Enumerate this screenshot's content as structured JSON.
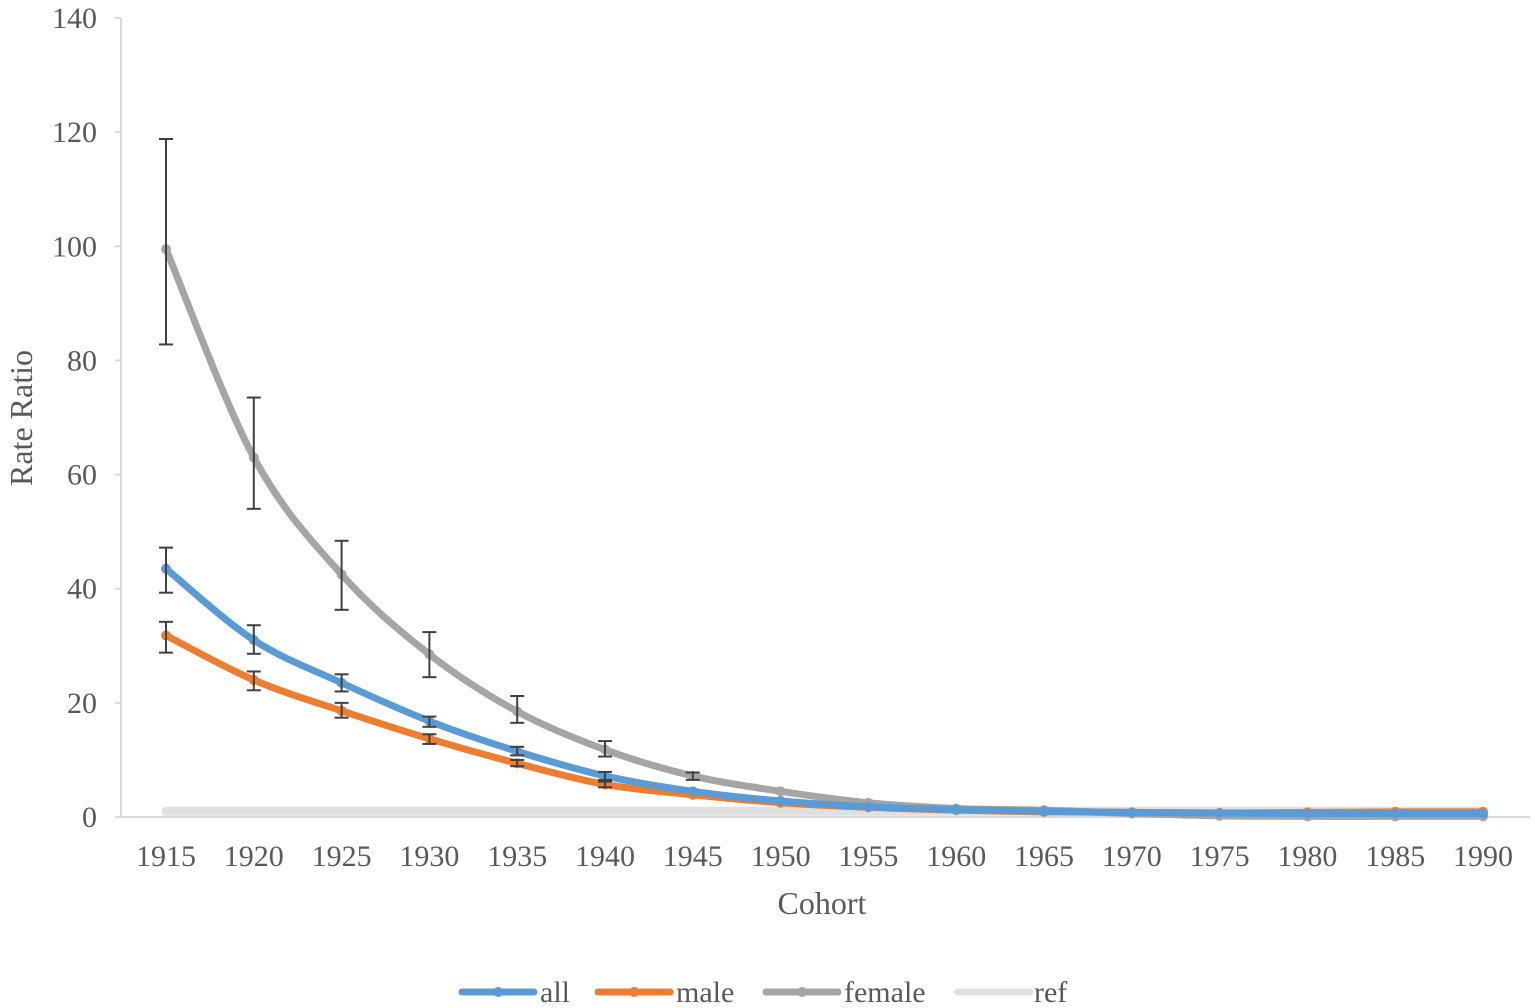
{
  "chart_data": {
    "type": "line",
    "title": "",
    "xlabel": "Cohort",
    "ylabel": "Rate Ratio",
    "categories": [
      "1915",
      "1920",
      "1925",
      "1930",
      "1935",
      "1940",
      "1945",
      "1950",
      "1955",
      "1960",
      "1965",
      "1970",
      "1975",
      "1980",
      "1985",
      "1990"
    ],
    "ylim": [
      0,
      140
    ],
    "yticks": [
      0,
      20,
      40,
      60,
      80,
      100,
      120,
      140
    ],
    "grid": false,
    "legend_position": "bottom",
    "series": [
      {
        "name": "all",
        "color": "#5B9BD5",
        "values": [
          43.5,
          31,
          23.5,
          16.8,
          11.5,
          7.2,
          4.5,
          2.8,
          1.8,
          1.3,
          1.0,
          0.8,
          0.7,
          0.6,
          0.6,
          0.6
        ],
        "error_low": [
          39.3,
          28.6,
          22.0,
          15.8,
          10.8,
          6.5,
          null,
          null,
          null,
          null,
          null,
          null,
          null,
          null,
          null,
          null
        ],
        "error_high": [
          47.2,
          33.6,
          25.0,
          17.6,
          12.3,
          7.9,
          null,
          null,
          null,
          null,
          null,
          null,
          null,
          null,
          null,
          null
        ]
      },
      {
        "name": "male",
        "color": "#ED7D31",
        "values": [
          31.8,
          24,
          18.6,
          13.7,
          9.4,
          5.7,
          3.9,
          2.5,
          1.7,
          1.2,
          0.9,
          0.8,
          0.7,
          0.8,
          0.9,
          0.9
        ],
        "error_low": [
          28.8,
          22.2,
          17.4,
          12.8,
          8.9,
          5.2,
          null,
          null,
          null,
          null,
          null,
          null,
          null,
          null,
          null,
          null
        ],
        "error_high": [
          34.2,
          25.5,
          20.0,
          14.5,
          10.0,
          6.2,
          null,
          null,
          null,
          null,
          null,
          null,
          null,
          null,
          null,
          null
        ]
      },
      {
        "name": "female",
        "color": "#A5A5A5",
        "values": [
          99.5,
          63,
          42.5,
          28.5,
          18.5,
          11.8,
          7.2,
          4.5,
          2.5,
          1.5,
          1.2,
          0.6,
          0.2,
          0.1,
          0.1,
          0.1
        ],
        "error_low": [
          82.8,
          54.0,
          36.3,
          24.5,
          16.5,
          10.6,
          6.5,
          null,
          null,
          null,
          null,
          null,
          null,
          null,
          null,
          null
        ],
        "error_high": [
          118.8,
          73.5,
          48.4,
          32.4,
          21.2,
          13.3,
          7.8,
          null,
          null,
          null,
          null,
          null,
          null,
          null,
          null,
          null
        ]
      },
      {
        "name": "ref",
        "color": "#E0E0E0",
        "values": [
          1,
          1,
          1,
          1,
          1,
          1,
          1,
          1,
          1,
          1,
          1,
          1,
          1,
          1,
          1,
          1
        ]
      }
    ]
  }
}
